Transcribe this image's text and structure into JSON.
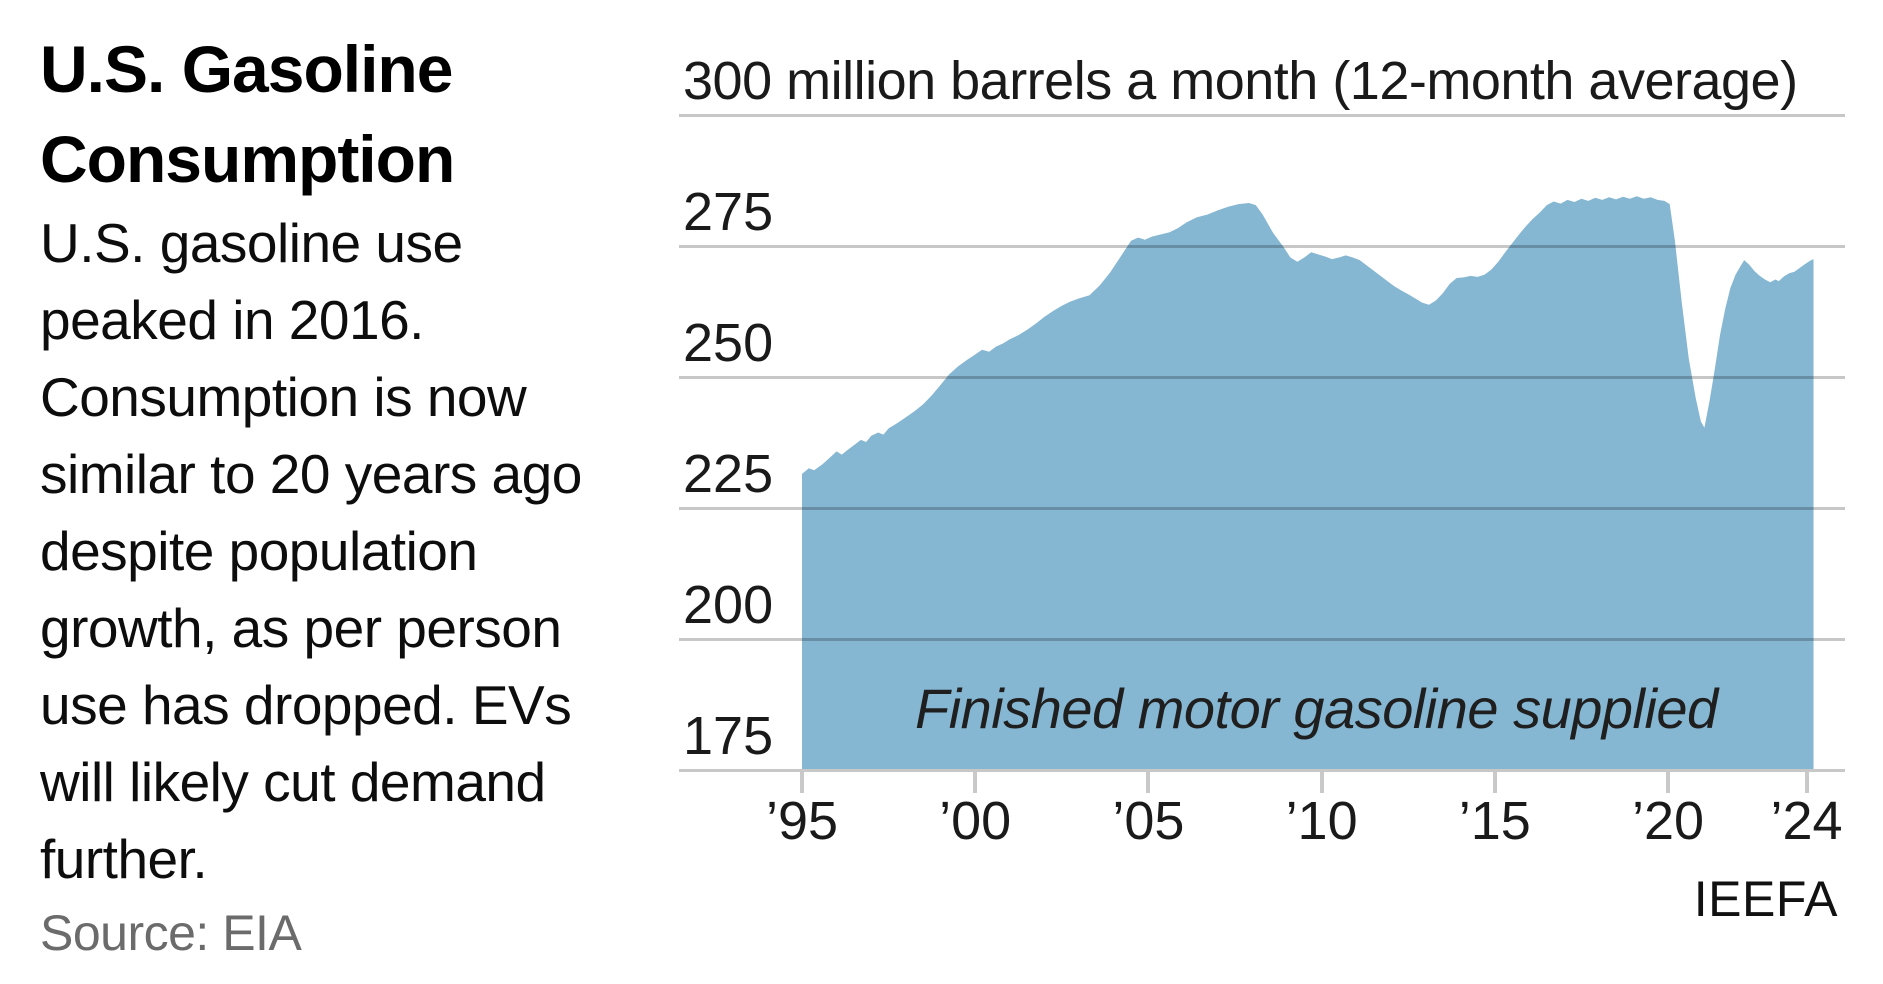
{
  "panel": {
    "title": "U.S. Gasoline\nConsumption",
    "description": "U.S. gasoline use\npeaked in 2016.\nConsumption is now\nsimilar to 20 years ago\ndespite population\ngrowth, as per person\nuse has dropped. EVs\nwill likely cut demand\nfurther.",
    "source": "Source: EIA",
    "attribution": "IEEFA"
  },
  "chart_data": {
    "type": "area",
    "title": "300 million barrels a month (12-month average)",
    "annotation": "Finished motor gasoline supplied",
    "area_color": "#85b6d2",
    "gridline_color": "rgba(0,0,0,0.22)",
    "axis_color": "#c8c8c8",
    "xlim": [
      1995,
      2024.25
    ],
    "ylim": [
      175,
      300
    ],
    "grid": "on",
    "y_gridline_values": [
      300,
      275,
      250,
      225,
      200
    ],
    "y_axis_bottom_value": 175,
    "y_tick_labels": [
      275,
      250,
      225,
      200,
      175
    ],
    "x_ticks": [
      {
        "label": "’95",
        "year": 1995
      },
      {
        "label": "’00",
        "year": 2000
      },
      {
        "label": "’05",
        "year": 2005
      },
      {
        "label": "’10",
        "year": 2010
      },
      {
        "label": "’15",
        "year": 2015
      },
      {
        "label": "’20",
        "year": 2020
      },
      {
        "label": "’24",
        "year": 2024
      }
    ],
    "series": [
      {
        "name": "Finished motor gasoline supplied",
        "points": [
          [
            1995.0,
            231.5
          ],
          [
            1995.2,
            232.6
          ],
          [
            1995.35,
            232.2
          ],
          [
            1995.6,
            233.4
          ],
          [
            1995.8,
            234.6
          ],
          [
            1996.0,
            235.8
          ],
          [
            1996.15,
            235.2
          ],
          [
            1996.3,
            236.0
          ],
          [
            1996.5,
            237.0
          ],
          [
            1996.7,
            238.0
          ],
          [
            1996.85,
            237.6
          ],
          [
            1997.0,
            238.8
          ],
          [
            1997.2,
            239.4
          ],
          [
            1997.35,
            239.0
          ],
          [
            1997.5,
            240.2
          ],
          [
            1997.75,
            241.2
          ],
          [
            1998.0,
            242.3
          ],
          [
            1998.25,
            243.5
          ],
          [
            1998.5,
            244.8
          ],
          [
            1998.75,
            246.5
          ],
          [
            1999.0,
            248.5
          ],
          [
            1999.25,
            250.5
          ],
          [
            1999.5,
            252.0
          ],
          [
            1999.75,
            253.2
          ],
          [
            2000.0,
            254.3
          ],
          [
            2000.2,
            255.2
          ],
          [
            2000.4,
            254.8
          ],
          [
            2000.6,
            255.8
          ],
          [
            2000.8,
            256.4
          ],
          [
            2001.0,
            257.2
          ],
          [
            2001.25,
            258.0
          ],
          [
            2001.5,
            259.0
          ],
          [
            2001.75,
            260.2
          ],
          [
            2002.0,
            261.5
          ],
          [
            2002.25,
            262.6
          ],
          [
            2002.5,
            263.6
          ],
          [
            2002.75,
            264.4
          ],
          [
            2003.0,
            265.0
          ],
          [
            2003.3,
            265.6
          ],
          [
            2003.6,
            267.5
          ],
          [
            2003.9,
            270.0
          ],
          [
            2004.2,
            273.0
          ],
          [
            2004.5,
            276.0
          ],
          [
            2004.7,
            276.6
          ],
          [
            2004.9,
            276.2
          ],
          [
            2005.1,
            276.8
          ],
          [
            2005.35,
            277.2
          ],
          [
            2005.6,
            277.6
          ],
          [
            2005.85,
            278.4
          ],
          [
            2006.1,
            279.5
          ],
          [
            2006.4,
            280.5
          ],
          [
            2006.7,
            281.0
          ],
          [
            2007.0,
            281.8
          ],
          [
            2007.3,
            282.5
          ],
          [
            2007.6,
            283.0
          ],
          [
            2007.9,
            283.2
          ],
          [
            2008.1,
            282.8
          ],
          [
            2008.3,
            281.0
          ],
          [
            2008.6,
            277.5
          ],
          [
            2008.9,
            274.8
          ],
          [
            2009.1,
            272.8
          ],
          [
            2009.3,
            272.0
          ],
          [
            2009.5,
            272.8
          ],
          [
            2009.7,
            273.8
          ],
          [
            2009.9,
            273.4
          ],
          [
            2010.1,
            273.0
          ],
          [
            2010.3,
            272.5
          ],
          [
            2010.5,
            272.8
          ],
          [
            2010.7,
            273.2
          ],
          [
            2010.9,
            272.8
          ],
          [
            2011.1,
            272.3
          ],
          [
            2011.3,
            271.3
          ],
          [
            2011.5,
            270.3
          ],
          [
            2011.7,
            269.3
          ],
          [
            2011.9,
            268.3
          ],
          [
            2012.1,
            267.3
          ],
          [
            2012.3,
            266.5
          ],
          [
            2012.5,
            265.8
          ],
          [
            2012.7,
            265.0
          ],
          [
            2012.9,
            264.2
          ],
          [
            2013.1,
            263.8
          ],
          [
            2013.3,
            264.6
          ],
          [
            2013.5,
            266.0
          ],
          [
            2013.7,
            267.8
          ],
          [
            2013.9,
            268.9
          ],
          [
            2014.1,
            269.0
          ],
          [
            2014.3,
            269.3
          ],
          [
            2014.5,
            269.1
          ],
          [
            2014.7,
            269.5
          ],
          [
            2014.9,
            270.5
          ],
          [
            2015.1,
            272.0
          ],
          [
            2015.3,
            273.8
          ],
          [
            2015.5,
            275.5
          ],
          [
            2015.7,
            277.2
          ],
          [
            2015.9,
            278.8
          ],
          [
            2016.1,
            280.2
          ],
          [
            2016.3,
            281.4
          ],
          [
            2016.5,
            282.8
          ],
          [
            2016.7,
            283.5
          ],
          [
            2016.9,
            283.1
          ],
          [
            2017.1,
            283.8
          ],
          [
            2017.3,
            283.4
          ],
          [
            2017.5,
            284.0
          ],
          [
            2017.7,
            283.6
          ],
          [
            2017.9,
            284.2
          ],
          [
            2018.1,
            283.8
          ],
          [
            2018.3,
            284.3
          ],
          [
            2018.5,
            283.9
          ],
          [
            2018.7,
            284.4
          ],
          [
            2018.9,
            284.0
          ],
          [
            2019.1,
            284.5
          ],
          [
            2019.3,
            284.0
          ],
          [
            2019.5,
            284.3
          ],
          [
            2019.7,
            283.8
          ],
          [
            2019.9,
            283.6
          ],
          [
            2020.05,
            283.0
          ],
          [
            2020.2,
            276.0
          ],
          [
            2020.4,
            264.0
          ],
          [
            2020.6,
            253.5
          ],
          [
            2020.8,
            246.0
          ],
          [
            2020.95,
            241.5
          ],
          [
            2021.05,
            240.3
          ],
          [
            2021.2,
            245.5
          ],
          [
            2021.35,
            251.5
          ],
          [
            2021.5,
            258.0
          ],
          [
            2021.65,
            263.0
          ],
          [
            2021.8,
            267.0
          ],
          [
            2021.95,
            269.5
          ],
          [
            2022.1,
            271.2
          ],
          [
            2022.2,
            272.3
          ],
          [
            2022.35,
            271.4
          ],
          [
            2022.5,
            270.2
          ],
          [
            2022.65,
            269.3
          ],
          [
            2022.8,
            268.6
          ],
          [
            2022.95,
            268.1
          ],
          [
            2023.1,
            268.6
          ],
          [
            2023.2,
            268.3
          ],
          [
            2023.35,
            269.2
          ],
          [
            2023.5,
            269.8
          ],
          [
            2023.65,
            270.1
          ],
          [
            2023.8,
            270.8
          ],
          [
            2023.95,
            271.5
          ],
          [
            2024.1,
            272.2
          ],
          [
            2024.2,
            272.5
          ]
        ]
      }
    ]
  }
}
